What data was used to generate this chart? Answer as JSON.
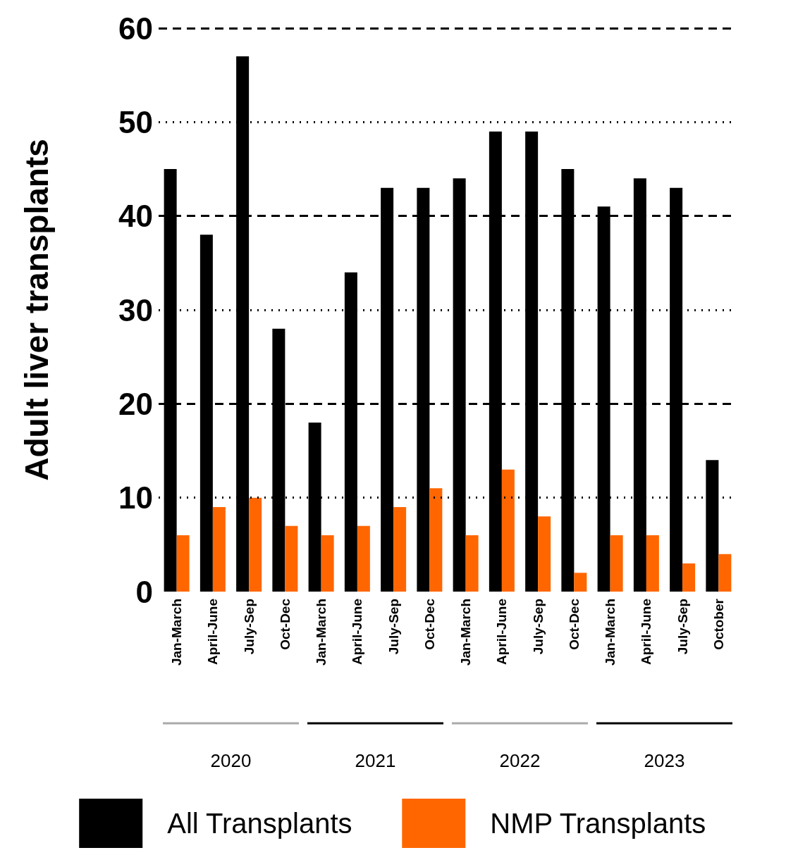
{
  "chart_data": {
    "type": "bar",
    "ylabel": "Adult liver transplants",
    "categories": [
      "Jan-March",
      "April-June",
      "July-Sep",
      "Oct-Dec",
      "Jan-March",
      "April-June",
      "July-Sep",
      "Oct-Dec",
      "Jan-March",
      "April-June",
      "July-Sep",
      "Oct-Dec",
      "Jan-March",
      "April-June",
      "July-Sep",
      "October"
    ],
    "series": [
      {
        "name": "All Transplants",
        "color": "#000000",
        "values": [
          45,
          38,
          57,
          28,
          18,
          34,
          43,
          43,
          44,
          49,
          49,
          45,
          41,
          44,
          43,
          14
        ]
      },
      {
        "name": "NMP Transplants",
        "color": "#ff6600",
        "values": [
          6,
          9,
          10,
          7,
          6,
          7,
          9,
          11,
          6,
          13,
          8,
          2,
          6,
          6,
          3,
          4
        ]
      }
    ],
    "ylim": [
      0,
      60
    ],
    "yticks": [
      0,
      10,
      20,
      30,
      40,
      50,
      60
    ],
    "grid": "y",
    "legend": "bottom",
    "annotations": [
      "2020",
      "2021",
      "2022",
      "2023"
    ]
  }
}
